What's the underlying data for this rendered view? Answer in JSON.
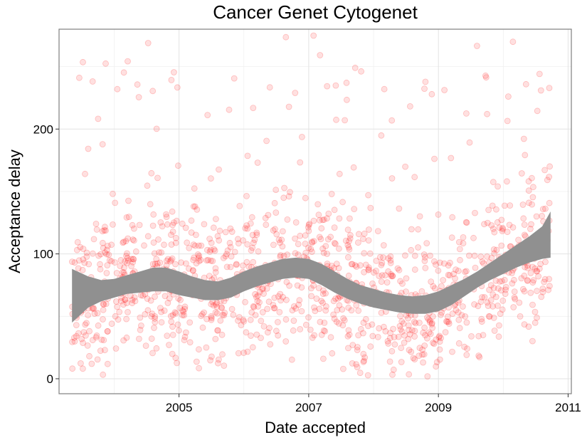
{
  "chart_data": {
    "type": "scatter",
    "title": "Cancer Genet Cytogenet",
    "xlabel": "Date accepted",
    "ylabel": "Acceptance delay",
    "x_ticks": [
      "2005",
      "2007",
      "2009",
      "2011"
    ],
    "y_ticks": [
      "0",
      "100",
      "200"
    ],
    "xlim": [
      2003.15,
      2011.05
    ],
    "ylim": [
      -12,
      280
    ],
    "grid": true,
    "point_color": "#ff0000",
    "point_opacity": 0.12,
    "ribbon_color": "#909090",
    "smooth_band": {
      "x": [
        2003.35,
        2003.6,
        2003.8,
        2004.0,
        2004.2,
        2004.4,
        2004.6,
        2004.8,
        2005.0,
        2005.2,
        2005.4,
        2005.6,
        2005.8,
        2006.0,
        2006.2,
        2006.4,
        2006.6,
        2006.8,
        2007.0,
        2007.2,
        2007.4,
        2007.6,
        2007.8,
        2008.0,
        2008.2,
        2008.4,
        2008.6,
        2008.8,
        2009.0,
        2009.2,
        2009.4,
        2009.6,
        2009.8,
        2010.0,
        2010.2,
        2010.4,
        2010.6,
        2010.73
      ],
      "lower": [
        45,
        57,
        62,
        65,
        68,
        69,
        70,
        70,
        67,
        65,
        63,
        63,
        65,
        70,
        74,
        77,
        80,
        81,
        80,
        75,
        69,
        64,
        60,
        57,
        55,
        53,
        52,
        52,
        54,
        59,
        66,
        73,
        79,
        84,
        89,
        93,
        96,
        97
      ],
      "upper": [
        88,
        82,
        79,
        80,
        83,
        86,
        89,
        89,
        86,
        82,
        79,
        78,
        81,
        86,
        90,
        93,
        96,
        97,
        96,
        92,
        86,
        80,
        75,
        72,
        69,
        67,
        66,
        67,
        70,
        75,
        80,
        86,
        93,
        100,
        107,
        114,
        122,
        134
      ]
    },
    "n_points": 1350,
    "points": []
  }
}
